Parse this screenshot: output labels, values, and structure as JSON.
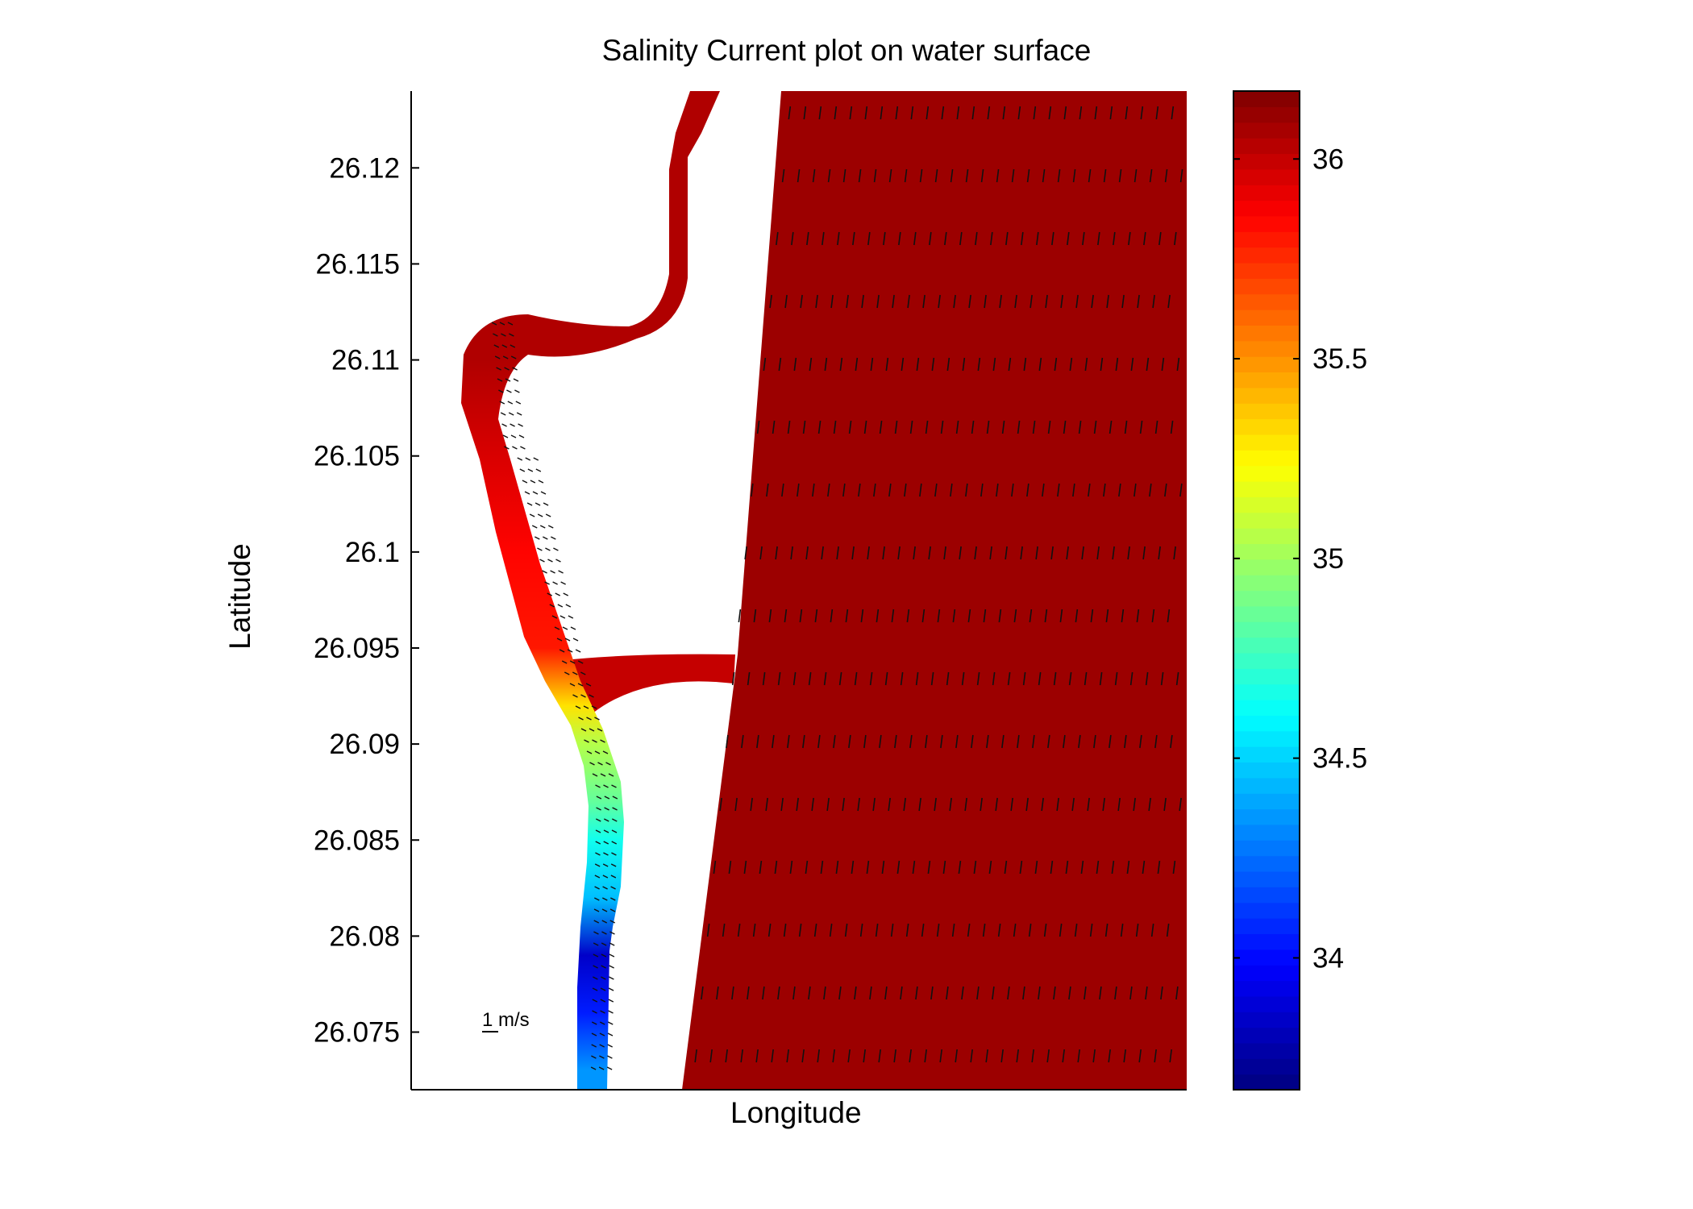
{
  "chart_data": {
    "type": "heatmap",
    "title": "Salinity Current plot on water surface",
    "xlabel": "Longitude",
    "ylabel": "Latitude",
    "ylim": [
      26.072,
      26.124
    ],
    "y_ticks": [
      "26.12",
      "26.115",
      "26.11",
      "26.105",
      "26.1",
      "26.095",
      "26.09",
      "26.085",
      "26.08",
      "26.075"
    ],
    "y_tick_values": [
      26.12,
      26.115,
      26.11,
      26.105,
      26.1,
      26.095,
      26.09,
      26.085,
      26.08,
      26.075
    ],
    "colorbar": {
      "colormap": "jet",
      "range": [
        33.67,
        36.17
      ],
      "ticks": [
        "34",
        "34.5",
        "35",
        "35.5",
        "36"
      ],
      "tick_values": [
        34,
        34.5,
        35,
        35.5,
        36
      ]
    },
    "reference_vector_label": "1 m/s",
    "salinity_along_channel": [
      {
        "lat": 26.124,
        "salinity": 36.05
      },
      {
        "lat": 26.11,
        "salinity": 36.05
      },
      {
        "lat": 26.105,
        "salinity": 35.95
      },
      {
        "lat": 26.1,
        "salinity": 35.85
      },
      {
        "lat": 26.095,
        "salinity": 35.8
      },
      {
        "lat": 26.092,
        "salinity": 35.3
      },
      {
        "lat": 26.09,
        "salinity": 35.05
      },
      {
        "lat": 26.087,
        "salinity": 34.85
      },
      {
        "lat": 26.085,
        "salinity": 34.65
      },
      {
        "lat": 26.082,
        "salinity": 34.45
      },
      {
        "lat": 26.079,
        "salinity": 33.85
      },
      {
        "lat": 26.076,
        "salinity": 34.05
      },
      {
        "lat": 26.073,
        "salinity": 34.35
      }
    ],
    "sea_salinity": 36.1,
    "link_channel_salinity": 36.0,
    "grid": false
  }
}
